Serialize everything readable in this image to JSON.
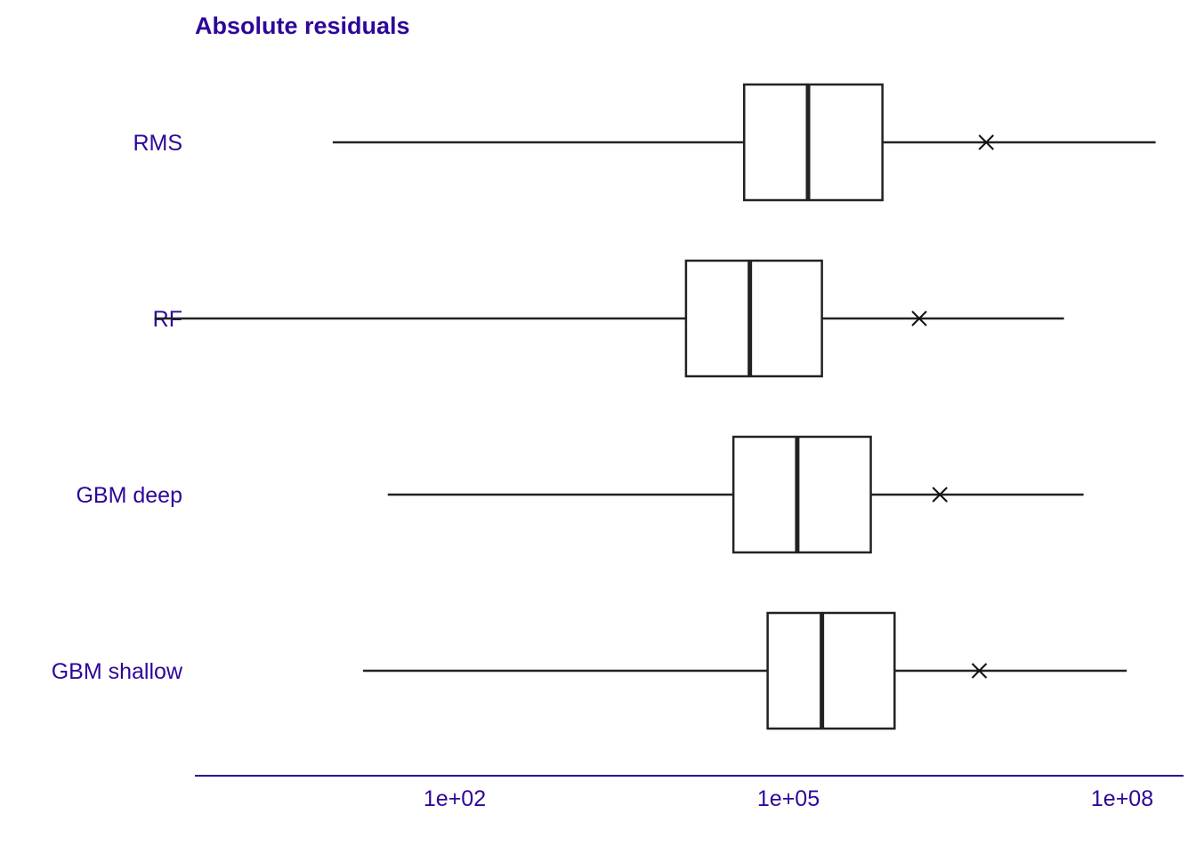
{
  "chart_data": {
    "type": "boxplot",
    "title": "Absolute residuals",
    "xlabel": "",
    "ylabel": "",
    "x_scale": "log10",
    "xlim": [
      0.1,
      2000000000
    ],
    "x_ticks": [
      {
        "value": 100,
        "label": "1e+02"
      },
      {
        "value": 100000,
        "label": "1e+05"
      },
      {
        "value": 100000000,
        "label": "1e+08"
      }
    ],
    "grid": false,
    "legend": "none",
    "series": [
      {
        "name": "RMS",
        "whisker_low": 8,
        "q1": 40000,
        "median": 150000,
        "q3": 700000,
        "whisker_high": 200000000,
        "mark": 6000000
      },
      {
        "name": "RF",
        "whisker_low": 0.2,
        "q1": 12000,
        "median": 45000,
        "q3": 200000,
        "whisker_high": 30000000,
        "mark": 1500000
      },
      {
        "name": "GBM deep",
        "whisker_low": 25,
        "q1": 32000,
        "median": 120000,
        "q3": 550000,
        "whisker_high": 45000000,
        "mark": 2300000
      },
      {
        "name": "GBM shallow",
        "whisker_low": 15,
        "q1": 65000,
        "median": 200000,
        "q3": 900000,
        "whisker_high": 110000000,
        "mark": 5200000
      }
    ],
    "colors": {
      "text": "#2e0699",
      "axis": "#2e0699",
      "box": "#222222",
      "mark": "#111111"
    }
  }
}
